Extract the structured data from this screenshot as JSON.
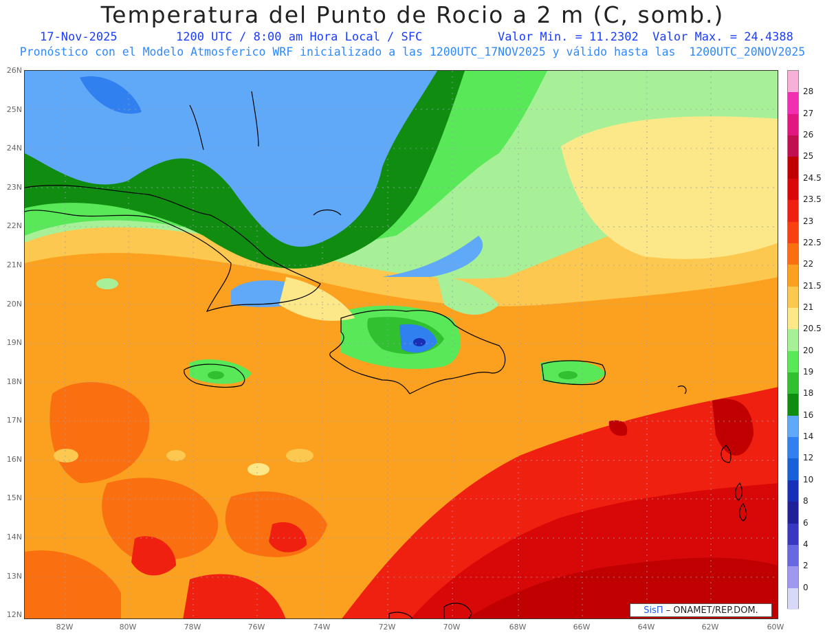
{
  "header": {
    "title": "Temperatura del Punto de Rocio a 2 m (C, somb.)",
    "date": "17-Nov-2025",
    "time": "1200 UTC / 8:00 am Hora Local / SFC",
    "minmax": "Valor Min. = 11.2302  Valor Max. = 24.4388",
    "subtitle": "Pronóstico con el Modelo Atmosferico WRF inicializado a las 1200UTC_17NOV2025 y válido hasta las  1200UTC_20NOV2025"
  },
  "axes": {
    "lat_labels": [
      "26N",
      "25N",
      "24N",
      "23N",
      "22N",
      "21N",
      "20N",
      "19N",
      "18N",
      "17N",
      "16N",
      "15N",
      "14N",
      "13N",
      "12N"
    ],
    "lon_labels": [
      "82W",
      "80W",
      "78W",
      "76W",
      "74W",
      "72W",
      "70W",
      "68W",
      "66W",
      "64W",
      "62W",
      "60W"
    ]
  },
  "colorbar": {
    "labels": [
      "28",
      "27",
      "26",
      "25",
      "24.5",
      "23.5",
      "23",
      "22.5",
      "22",
      "21.5",
      "21",
      "20.5",
      "20",
      "19",
      "18",
      "16",
      "14",
      "12",
      "10",
      "8",
      "6",
      "4",
      "2",
      "0"
    ],
    "colors": [
      "#f7b0d8",
      "#f030b0",
      "#e01880",
      "#c01050",
      "#c00000",
      "#d80808",
      "#f02010",
      "#f84010",
      "#fa7010",
      "#fca020",
      "#fcc850",
      "#fce888",
      "#a8f098",
      "#58e858",
      "#30c030",
      "#108c10",
      "#60a8f8",
      "#3080f0",
      "#1860d8",
      "#1830b8",
      "#202098",
      "#3838c0",
      "#6868e0",
      "#a098f0",
      "#d8d8f8"
    ]
  },
  "credit": {
    "brand": "SisΠ",
    "text": " – ONAMET/REP.DOM."
  }
}
